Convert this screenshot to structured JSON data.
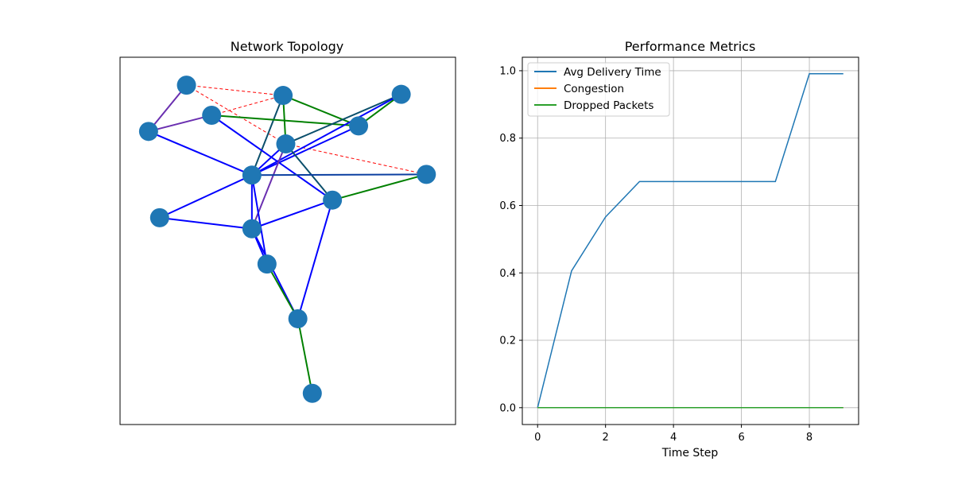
{
  "chart_data": [
    {
      "type": "network",
      "title": "Network Topology",
      "nodes": [
        {
          "id": 0,
          "x": 0.198,
          "y": 0.924
        },
        {
          "id": 1,
          "x": 0.486,
          "y": 0.896
        },
        {
          "id": 2,
          "x": 0.838,
          "y": 0.899
        },
        {
          "id": 3,
          "x": 0.273,
          "y": 0.842
        },
        {
          "id": 4,
          "x": 0.711,
          "y": 0.813
        },
        {
          "id": 5,
          "x": 0.085,
          "y": 0.798
        },
        {
          "id": 6,
          "x": 0.494,
          "y": 0.764
        },
        {
          "id": 7,
          "x": 0.393,
          "y": 0.679
        },
        {
          "id": 8,
          "x": 0.913,
          "y": 0.681
        },
        {
          "id": 9,
          "x": 0.633,
          "y": 0.611
        },
        {
          "id": 10,
          "x": 0.118,
          "y": 0.563
        },
        {
          "id": 11,
          "x": 0.393,
          "y": 0.533
        },
        {
          "id": 12,
          "x": 0.438,
          "y": 0.437
        },
        {
          "id": 13,
          "x": 0.53,
          "y": 0.288
        },
        {
          "id": 14,
          "x": 0.573,
          "y": 0.085
        }
      ],
      "edges": [
        {
          "source": 0,
          "target": 1,
          "color": "#ff0000",
          "style": "dashed"
        },
        {
          "source": 0,
          "target": 6,
          "color": "#ff0000",
          "style": "dashed"
        },
        {
          "source": 0,
          "target": 5,
          "color": "#6a2fb0",
          "style": "solid"
        },
        {
          "source": 5,
          "target": 3,
          "color": "#6a2fb0",
          "style": "solid"
        },
        {
          "source": 3,
          "target": 1,
          "color": "#ff0000",
          "style": "dashed"
        },
        {
          "source": 6,
          "target": 8,
          "color": "#ff0000",
          "style": "dashed"
        },
        {
          "source": 1,
          "target": 6,
          "color": "#008000",
          "style": "solid"
        },
        {
          "source": 1,
          "target": 4,
          "color": "#008000",
          "style": "solid"
        },
        {
          "source": 1,
          "target": 7,
          "color": "#0b4f6c",
          "style": "solid"
        },
        {
          "source": 3,
          "target": 4,
          "color": "#008000",
          "style": "solid"
        },
        {
          "source": 3,
          "target": 9,
          "color": "#0000ff",
          "style": "solid"
        },
        {
          "source": 4,
          "target": 2,
          "color": "#008000",
          "style": "solid"
        },
        {
          "source": 2,
          "target": 6,
          "color": "#0b4f6c",
          "style": "solid"
        },
        {
          "source": 2,
          "target": 7,
          "color": "#0000ff",
          "style": "solid"
        },
        {
          "source": 5,
          "target": 7,
          "color": "#0000ff",
          "style": "solid"
        },
        {
          "source": 4,
          "target": 7,
          "color": "#0000ff",
          "style": "solid"
        },
        {
          "source": 6,
          "target": 9,
          "color": "#0b4f6c",
          "style": "solid"
        },
        {
          "source": 6,
          "target": 7,
          "color": "#0000ff",
          "style": "solid"
        },
        {
          "source": 6,
          "target": 11,
          "color": "#6a2fb0",
          "style": "solid"
        },
        {
          "source": 7,
          "target": 8,
          "color": "#0b3fa0",
          "style": "solid"
        },
        {
          "source": 7,
          "target": 10,
          "color": "#0000ff",
          "style": "solid"
        },
        {
          "source": 7,
          "target": 11,
          "color": "#0000ff",
          "style": "solid"
        },
        {
          "source": 7,
          "target": 12,
          "color": "#0000ff",
          "style": "solid"
        },
        {
          "source": 8,
          "target": 9,
          "color": "#008000",
          "style": "solid"
        },
        {
          "source": 9,
          "target": 11,
          "color": "#0000ff",
          "style": "solid"
        },
        {
          "source": 9,
          "target": 13,
          "color": "#0000ff",
          "style": "solid"
        },
        {
          "source": 10,
          "target": 11,
          "color": "#0000ff",
          "style": "solid"
        },
        {
          "source": 11,
          "target": 12,
          "color": "#0000ff",
          "style": "solid"
        },
        {
          "source": 11,
          "target": 13,
          "color": "#0000ff",
          "style": "solid"
        },
        {
          "source": 12,
          "target": 13,
          "color": "#008000",
          "style": "solid"
        },
        {
          "source": 13,
          "target": 14,
          "color": "#008000",
          "style": "solid"
        }
      ],
      "node_color": "#1f77b4",
      "show_axes_ticks": false
    },
    {
      "type": "line",
      "title": "Performance Metrics",
      "xlabel": "Time Step",
      "ylabel": "",
      "x": [
        0,
        1,
        2,
        3,
        4,
        5,
        6,
        7,
        8,
        9
      ],
      "xlim": [
        -0.45,
        9.45
      ],
      "ylim": [
        -0.05,
        1.04
      ],
      "xticks": [
        0,
        2,
        4,
        6,
        8
      ],
      "yticks": [
        0.0,
        0.2,
        0.4,
        0.6,
        0.8,
        1.0
      ],
      "grid": true,
      "legend": "upper left",
      "series": [
        {
          "name": "Avg Delivery Time",
          "color": "#1f77b4",
          "values": [
            0.0,
            0.406,
            0.566,
            0.671,
            0.671,
            0.671,
            0.671,
            0.671,
            0.991,
            0.991
          ]
        },
        {
          "name": "Congestion",
          "color": "#ff7f0e",
          "values": [
            0,
            0,
            0,
            0,
            0,
            0,
            0,
            0,
            0,
            0
          ]
        },
        {
          "name": "Dropped Packets",
          "color": "#2ca02c",
          "values": [
            0,
            0,
            0,
            0,
            0,
            0,
            0,
            0,
            0,
            0
          ]
        }
      ]
    }
  ]
}
